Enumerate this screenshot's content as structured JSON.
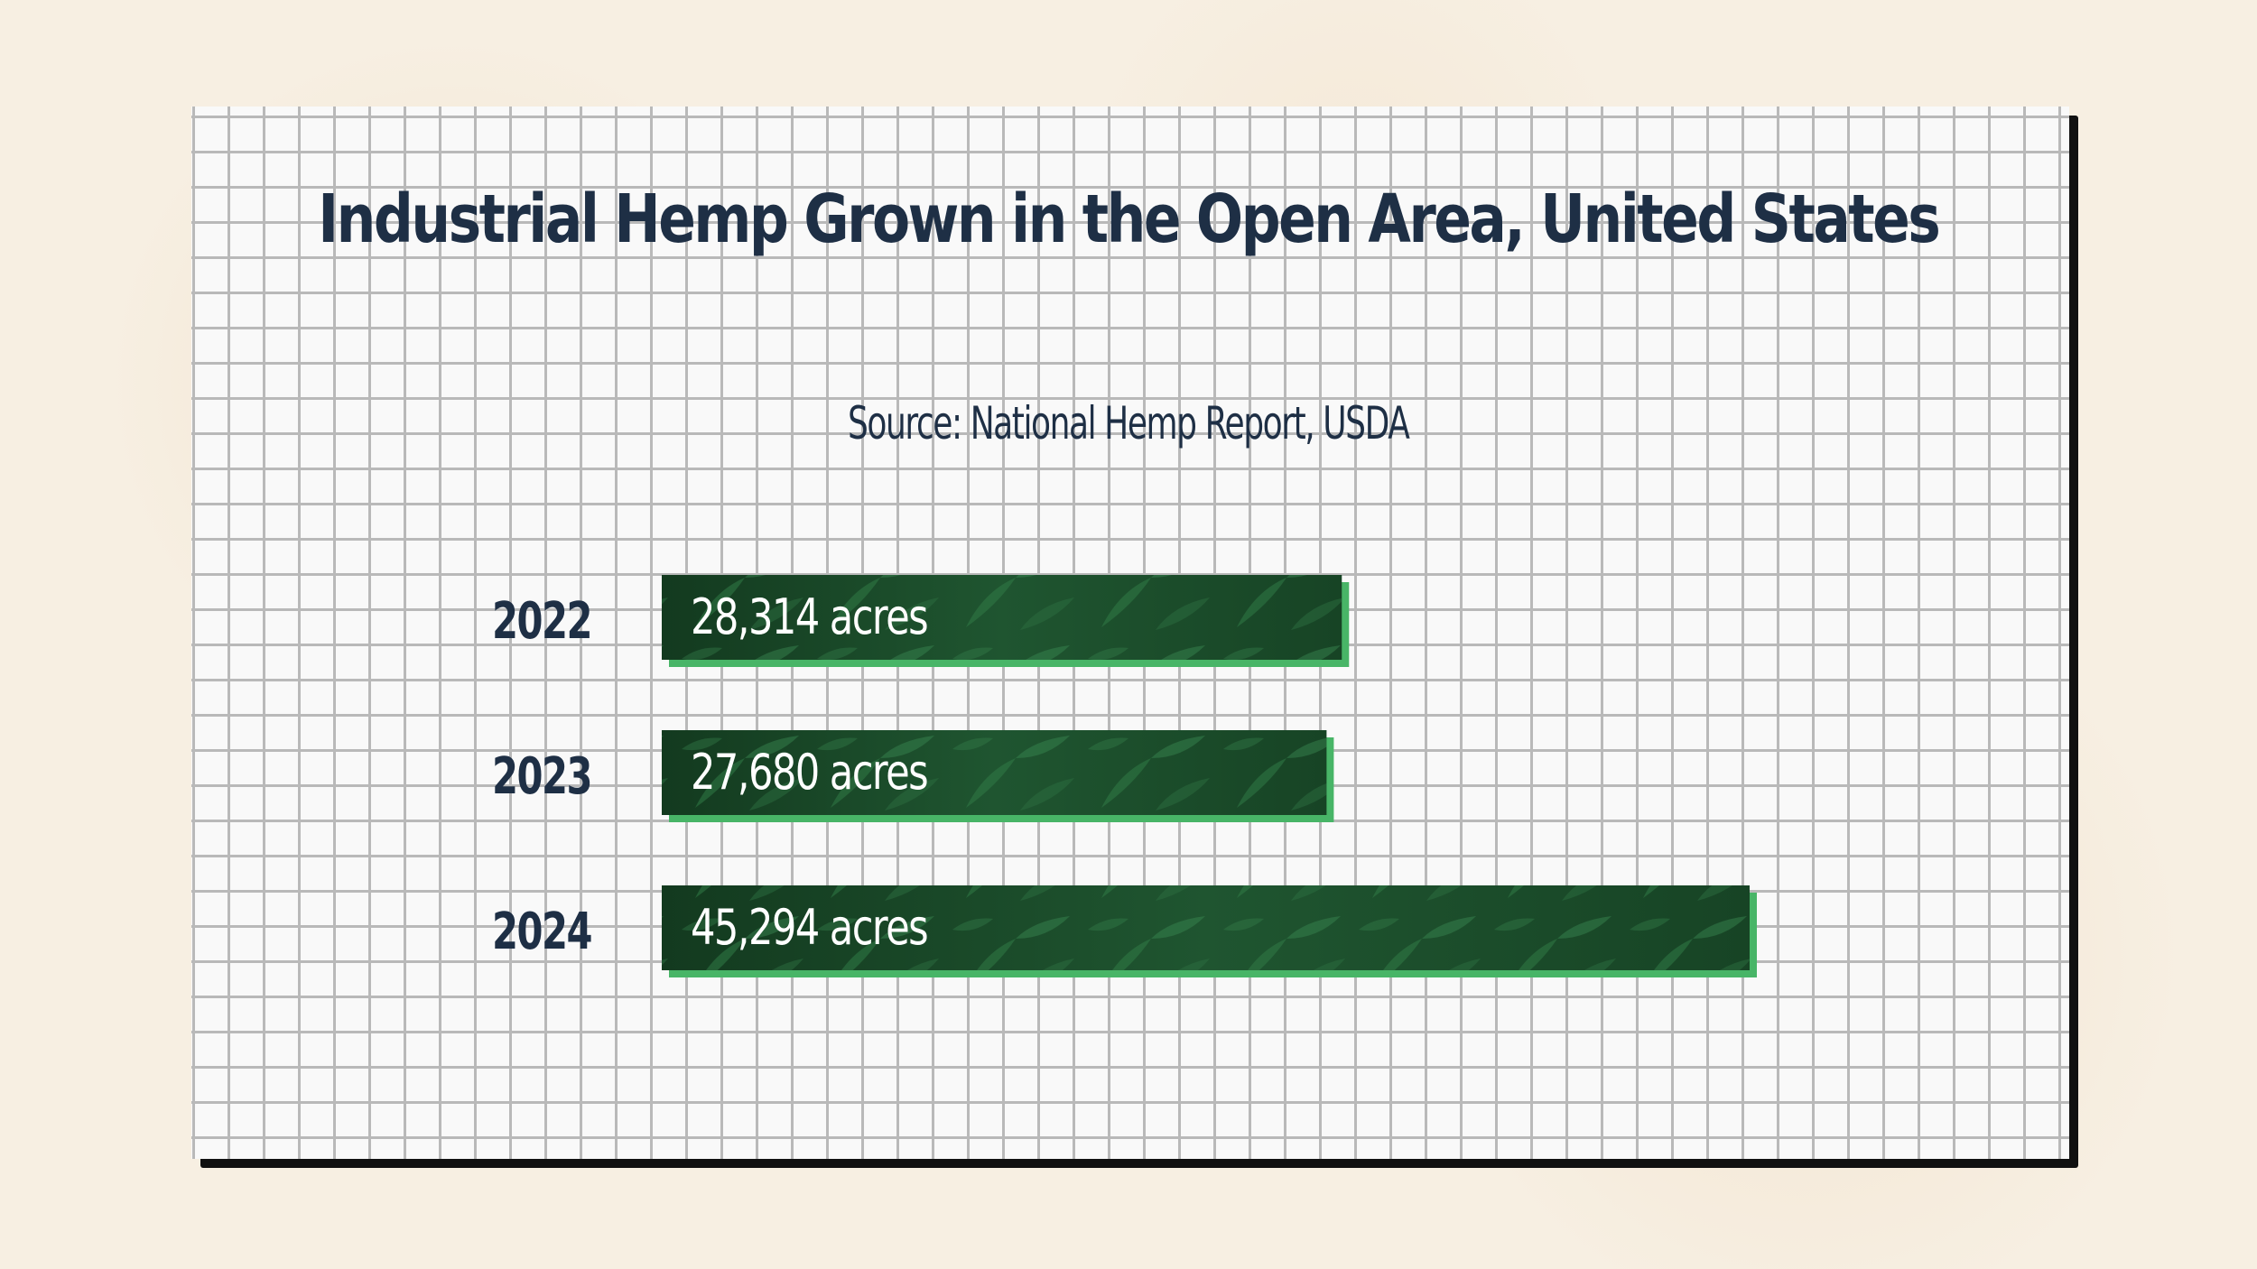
{
  "chart_data": {
    "type": "bar",
    "orientation": "horizontal",
    "title": "Industrial Hemp Grown in the Open Area, United States",
    "subtitle": "Source: National Hemp Report, USDA",
    "categories": [
      "2022",
      "2023",
      "2024"
    ],
    "values": [
      28314,
      27680,
      45294
    ],
    "value_labels": [
      "28,314 acres",
      "27,680 acres",
      "45,294 acres"
    ],
    "unit": "acres",
    "xlim": [
      0,
      45294
    ],
    "grid": false,
    "legend": "none"
  },
  "colors": {
    "bar_fill": "#1d4a2a",
    "bar_accent": "#48b567",
    "text": "#1e2f45",
    "background": "#f7efe2"
  }
}
